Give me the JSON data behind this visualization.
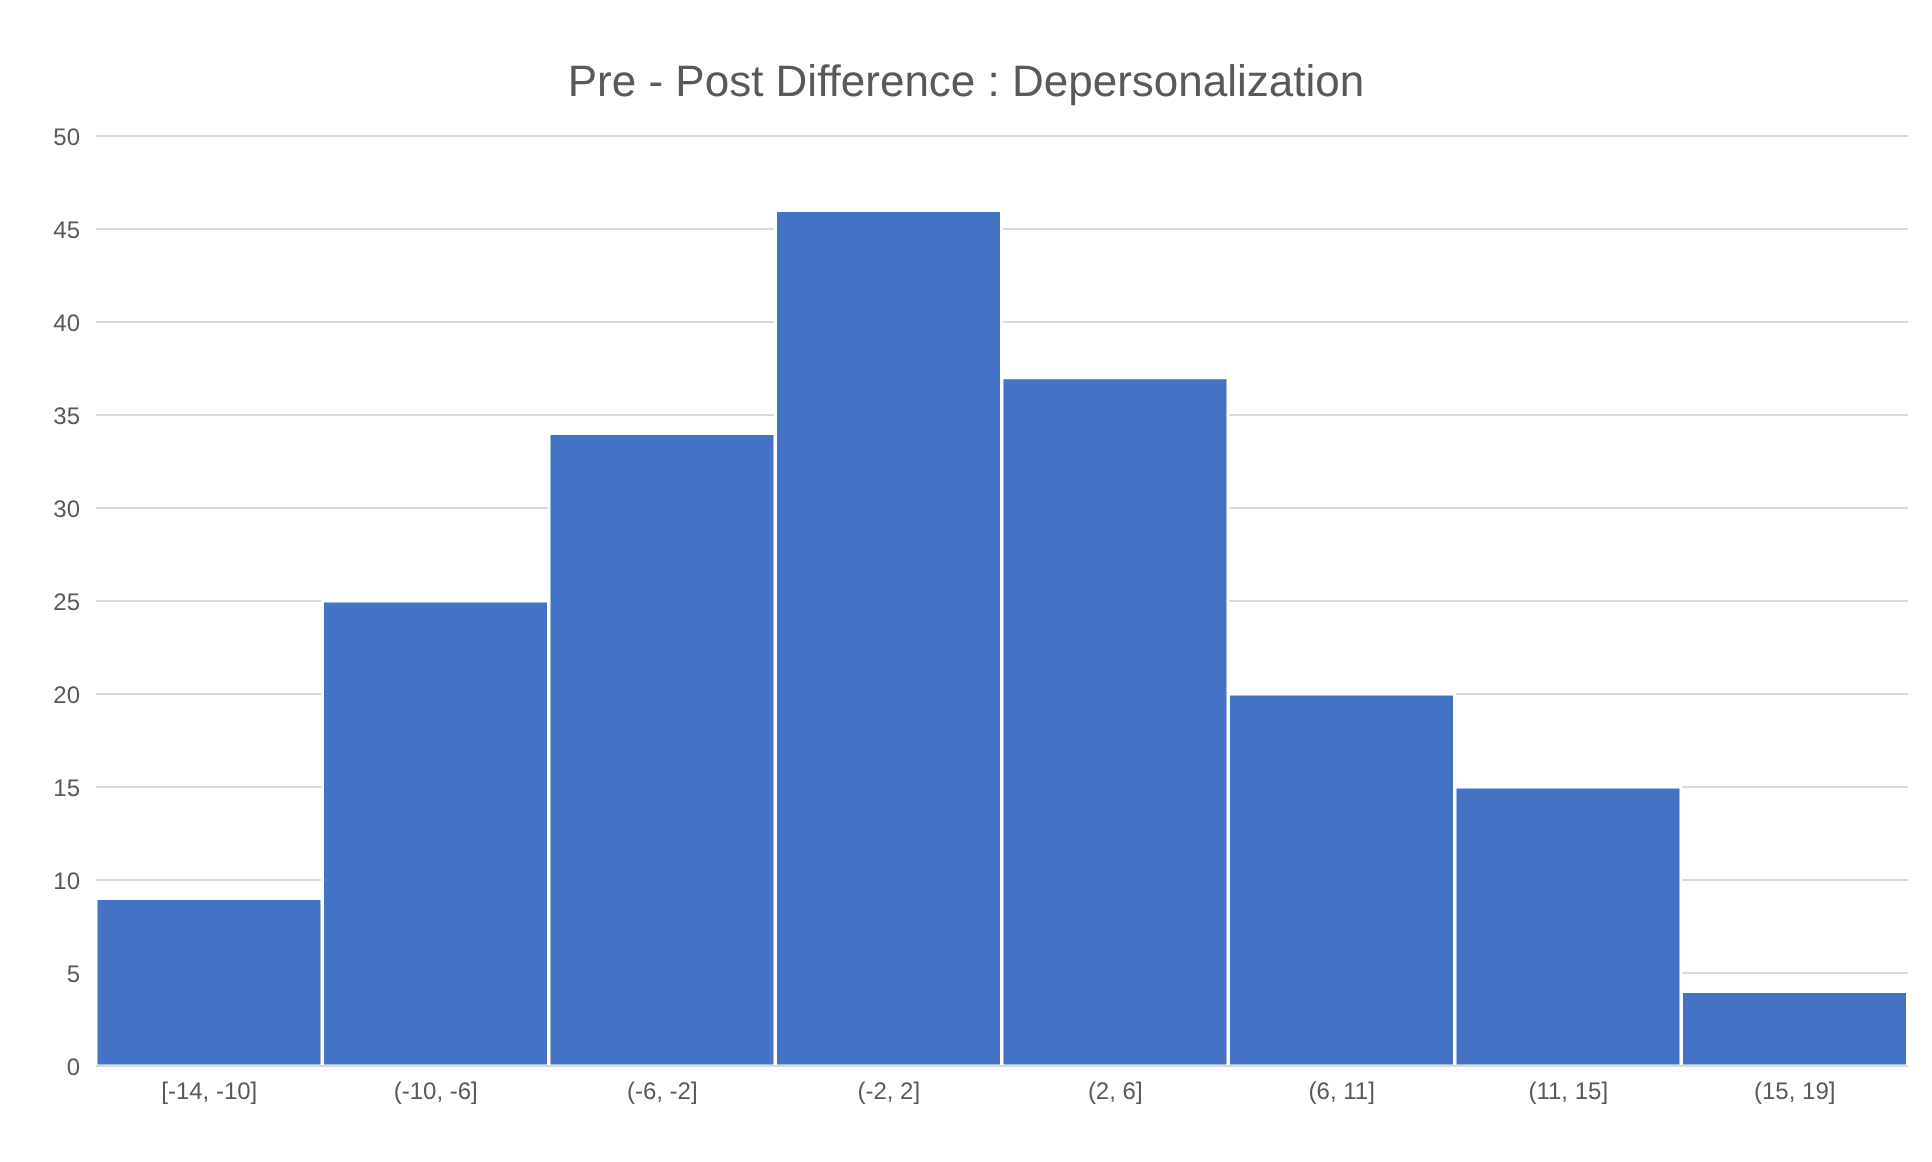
{
  "chart_data": {
    "type": "bar",
    "title": "Pre - Post Difference : Depersonalization",
    "categories": [
      "[-14, -10]",
      "(-10, -6]",
      "(-6, -2]",
      "(-2, 2]",
      "(2, 6]",
      "(6, 11]",
      "(11, 15]",
      "(15, 19]"
    ],
    "values": [
      9,
      25,
      34,
      46,
      37,
      20,
      15,
      4
    ],
    "color": "#4472c4",
    "ylim": [
      0,
      50
    ],
    "yticks": [
      0,
      5,
      10,
      15,
      20,
      25,
      30,
      35,
      40,
      45,
      50
    ],
    "grid": "y"
  }
}
